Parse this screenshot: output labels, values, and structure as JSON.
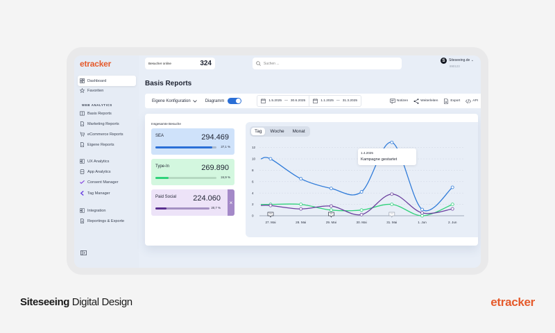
{
  "app": {
    "logo": "etracker",
    "visitors_online": {
      "label": "Besucher online",
      "value": "324"
    },
    "search": {
      "placeholder": "Suchen ..."
    },
    "account": {
      "avatar_letter": "S",
      "name": "Siteseeing.de",
      "id": "890123"
    }
  },
  "sidebar": {
    "items": [
      {
        "label": "Dashboard",
        "icon": "dashboard-icon",
        "active": true
      },
      {
        "label": "Favoriten",
        "icon": "star-icon"
      }
    ],
    "section_label": "WEB ANALYTICS",
    "web_analytics": [
      {
        "label": "Basis Reports",
        "icon": "book-icon"
      },
      {
        "label": "Marketing Reports",
        "icon": "document-icon"
      },
      {
        "label": "eCommerce Reports",
        "icon": "cart-icon"
      },
      {
        "label": "Eigene Reports",
        "icon": "document-icon"
      }
    ],
    "products": [
      {
        "label": "UX Analytics",
        "icon": "ux-icon"
      },
      {
        "label": "App Analytics",
        "icon": "app-icon"
      },
      {
        "label": "Consent Manager",
        "icon": "check-icon"
      },
      {
        "label": "Tag Manager",
        "icon": "tag-icon"
      }
    ],
    "tools": [
      {
        "label": "Integration",
        "icon": "integration-icon"
      },
      {
        "label": "Reportings & Exporte",
        "icon": "export-doc-icon"
      }
    ]
  },
  "page": {
    "title": "Basis Reports"
  },
  "toolbar": {
    "config_label": "Eigene Konfiguration",
    "diagram_label": "Diagramm",
    "diagram_enabled": true,
    "date_range_1": {
      "from": "1.5.2025",
      "to": "30.6.2025"
    },
    "date_range_2": {
      "from": "1.1.2025",
      "to": "31.3.2025"
    },
    "date_sep": "—",
    "actions": [
      {
        "label": "Notizen",
        "icon": "note-icon"
      },
      {
        "label": "Weiterleiten",
        "icon": "share-icon"
      },
      {
        "label": "Export",
        "icon": "export-icon"
      },
      {
        "label": "API",
        "icon": "code-icon"
      }
    ]
  },
  "kpis": {
    "title": "Insgesamte Besuche",
    "items": [
      {
        "name": "SEA",
        "value": "294.469",
        "pct": "27,1 %",
        "fill": 0.93,
        "bg": "#cfe2fa",
        "bar": "#2b6fd6",
        "track": "#a9b8cc"
      },
      {
        "name": "Type-In",
        "value": "269.890",
        "pct": "24,9 %",
        "fill": 0.22,
        "bg": "#d3f7df",
        "bar": "#2fd27a",
        "track": "#b5d8c1"
      },
      {
        "name": "Paid Social",
        "value": "224.060",
        "pct": "20,7 %",
        "fill": 0.2,
        "bg": "#ede3f8",
        "bar": "#5a2f8f",
        "track": "#a490c2"
      }
    ],
    "close_label": "×"
  },
  "chart_tabs": [
    {
      "label": "Tag",
      "active": true
    },
    {
      "label": "Woche"
    },
    {
      "label": "Monat"
    }
  ],
  "tooltip": {
    "date": "1.4.2025",
    "text": "Kampagne gestartet"
  },
  "chart_data": {
    "type": "line",
    "categories": [
      "27. Mai",
      "28. Mai",
      "29. Mai",
      "30. Mai",
      "31. Mai",
      "1. Jun",
      "2. Jun"
    ],
    "series": [
      {
        "name": "SEA",
        "color": "#2f7bd9",
        "values": [
          10,
          6.5,
          4.8,
          4.2,
          12.9,
          1.1,
          5
        ]
      },
      {
        "name": "Type-In",
        "color": "#2fd27a",
        "values": [
          2,
          2,
          1,
          1,
          2,
          0,
          2
        ]
      },
      {
        "name": "Paid Social",
        "color": "#6a3f9e",
        "values": [
          1.8,
          1.2,
          1.7,
          0.2,
          3.8,
          0.5,
          1.2
        ]
      }
    ],
    "yticks": [
      0,
      2,
      4,
      6,
      8,
      10,
      12
    ],
    "ylim": [
      0,
      13
    ],
    "note_markers": [
      "27. Mai",
      "29. Mai",
      "31. Mai"
    ],
    "grid": true,
    "xlabel": "",
    "ylabel": ""
  },
  "footer": {
    "left_bold": "Siteseeing",
    "left_rest": " Digital Design",
    "right": "etracker"
  }
}
